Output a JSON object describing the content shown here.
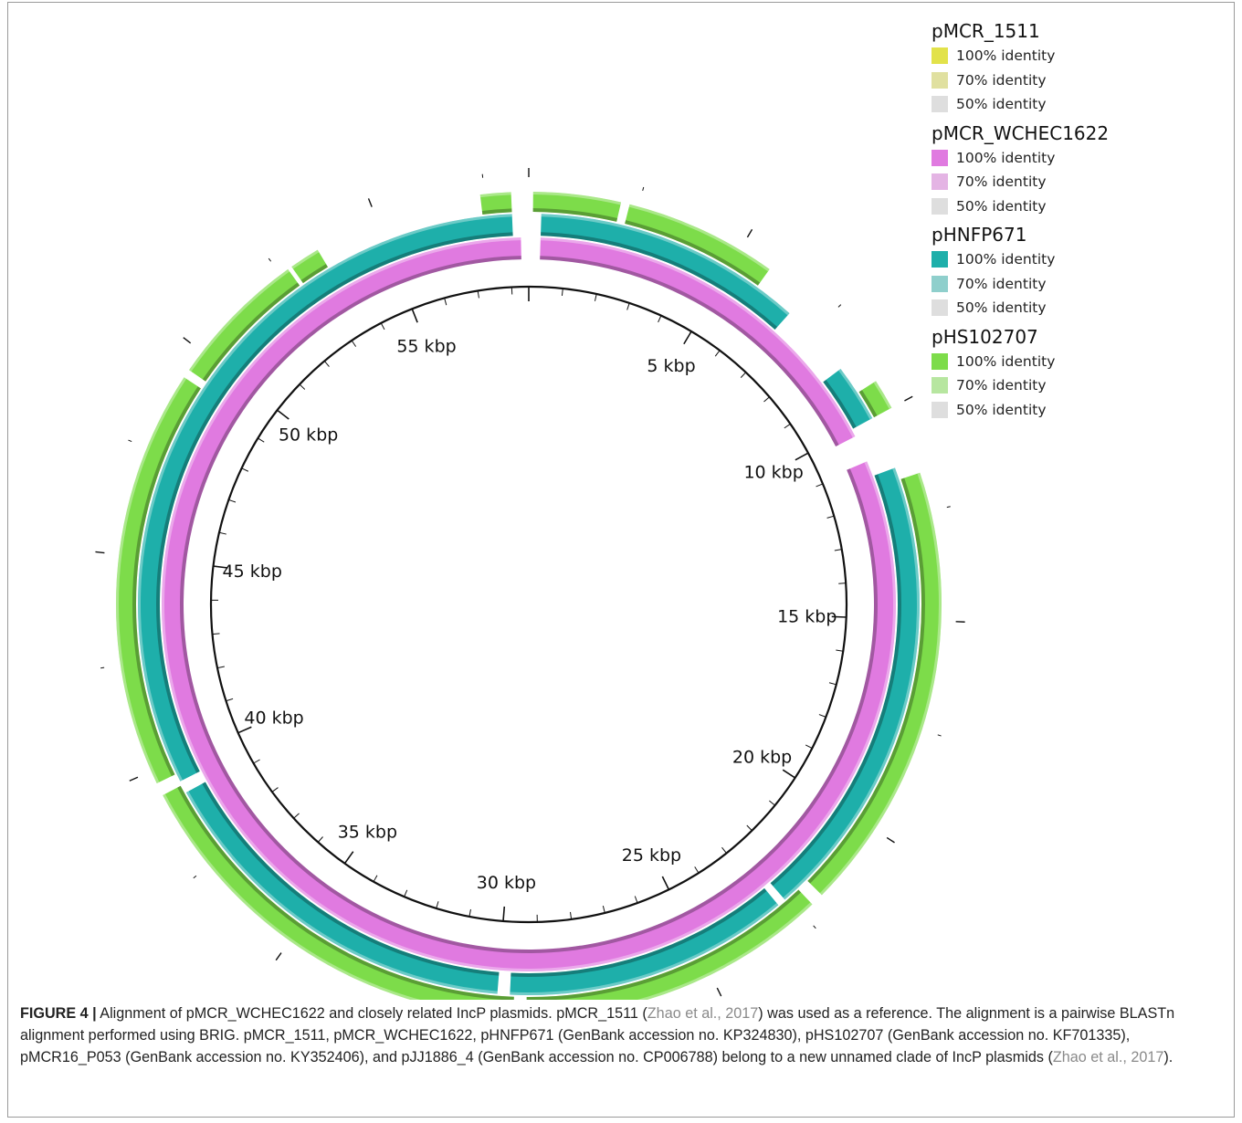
{
  "figure": {
    "plot": {
      "tick_labels": [
        "5 kbp",
        "10 kbp",
        "15 kbp",
        "20 kbp",
        "25 kbp",
        "30 kbp",
        "35 kbp",
        "40 kbp",
        "45 kbp",
        "50 kbp",
        "55 kbp"
      ],
      "tick_label_kbp": [
        5,
        10,
        15,
        20,
        25,
        30,
        35,
        40,
        45,
        50,
        55
      ],
      "genome_kbp": 58.5,
      "rings": [
        {
          "name": "pMCR_1511",
          "color": "#e2e24a",
          "segments": [
            [
              0,
              58.5
            ]
          ]
        },
        {
          "name": "pMCR_WCHEC1622",
          "color": "#e07ae0",
          "segments": [
            [
              0.3,
              10.2
            ],
            [
              10.9,
              58.3
            ]
          ]
        },
        {
          "name": "pHNFP671",
          "color": "#1eafaa",
          "segments": [
            [
              0.3,
              6.8
            ],
            [
              8.6,
              10.0
            ],
            [
              11.3,
              22.6
            ],
            [
              22.8,
              29.7
            ],
            [
              30.0,
              39.2
            ],
            [
              39.5,
              58.1
            ]
          ]
        },
        {
          "name": "pHS102707",
          "color": "#7ddc4a",
          "segments": [
            [
              0.1,
              2.1
            ],
            [
              2.3,
              5.8
            ],
            [
              9.3,
              10.0
            ],
            [
              11.6,
              21.9
            ],
            [
              22.2,
              29.3
            ],
            [
              29.6,
              39.4
            ],
            [
              39.7,
              49.3
            ],
            [
              49.5,
              52.7
            ],
            [
              52.8,
              53.5
            ],
            [
              57.4,
              58.1
            ]
          ]
        }
      ]
    },
    "legend": [
      {
        "title": "pMCR_1511",
        "items": [
          {
            "label": "100% identity",
            "color": "#e2e24a"
          },
          {
            "label": "70% identity",
            "color": "#e0e0a0"
          },
          {
            "label": "50% identity",
            "color": "#dedede"
          }
        ]
      },
      {
        "title": "pMCR_WCHEC1622",
        "items": [
          {
            "label": "100% identity",
            "color": "#e07ae0"
          },
          {
            "label": "70% identity",
            "color": "#e4b4e4"
          },
          {
            "label": "50% identity",
            "color": "#dedede"
          }
        ]
      },
      {
        "title": "pHNFP671",
        "items": [
          {
            "label": "100% identity",
            "color": "#1eafaa"
          },
          {
            "label": "70% identity",
            "color": "#8fcfcc"
          },
          {
            "label": "50% identity",
            "color": "#dedede"
          }
        ]
      },
      {
        "title": "pHS102707",
        "items": [
          {
            "label": "100% identity",
            "color": "#7ddc4a"
          },
          {
            "label": "70% identity",
            "color": "#b7e6a0"
          },
          {
            "label": "50% identity",
            "color": "#dedede"
          }
        ]
      }
    ],
    "caption": {
      "label": "FIGURE 4 |",
      "parts": [
        {
          "text": " Alignment of pMCR_WCHEC1622 and closely related IncP plasmids. pMCR_1511 (",
          "ref": false
        },
        {
          "text": "Zhao et al., 2017",
          "ref": true
        },
        {
          "text": ") was used as a reference. The alignment is a pairwise BLASTn alignment performed using BRIG. pMCR_1511, pMCR_WCHEC1622, pHNFP671 (GenBank accession no. KP324830), pHS102707 (GenBank accession no. KF701335), pMCR16_P053 (GenBank accession no. KY352406), and pJJ1886_4 (GenBank accession no. CP006788) belong to a new unnamed clade of IncP plasmids (",
          "ref": false
        },
        {
          "text": "Zhao et al., 2017",
          "ref": true
        },
        {
          "text": ").",
          "ref": false
        }
      ]
    }
  }
}
